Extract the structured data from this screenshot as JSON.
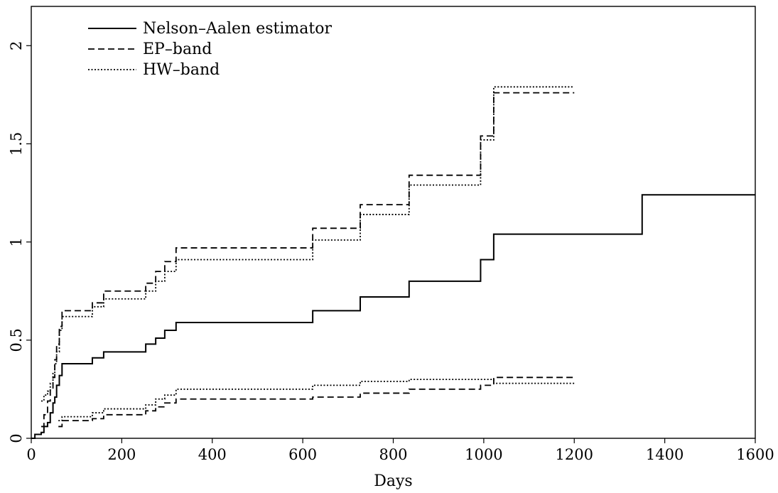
{
  "chart_data": {
    "type": "line",
    "title": "",
    "xlabel": "Days",
    "ylabel": "",
    "xlim": [
      0,
      1600
    ],
    "ylim": [
      0,
      2.2
    ],
    "xticks": [
      0,
      200,
      400,
      600,
      800,
      1000,
      1200,
      1400,
      1600
    ],
    "xtick_labels": [
      "0",
      "200",
      "400",
      "600",
      "800",
      "1000",
      "1200",
      "1400",
      "1600"
    ],
    "yticks": [
      0,
      0.5,
      1,
      1.5,
      2
    ],
    "ytick_labels": [
      "0",
      "0.5",
      "1",
      "1.5",
      "2"
    ],
    "grid": false,
    "legend_position": "top-left",
    "step": true,
    "series": [
      {
        "name": "Nelson–Aalen estimator",
        "style": "solid",
        "x": [
          0,
          8,
          22,
          28,
          36,
          42,
          48,
          52,
          56,
          62,
          68,
          135,
          160,
          253,
          275,
          295,
          320,
          622,
          727,
          835,
          993,
          1022,
          1350,
          1600
        ],
        "y": [
          0,
          0.02,
          0.03,
          0.06,
          0.08,
          0.13,
          0.18,
          0.21,
          0.27,
          0.32,
          0.38,
          0.41,
          0.44,
          0.48,
          0.51,
          0.55,
          0.59,
          0.65,
          0.72,
          0.8,
          0.91,
          1.04,
          1.24,
          1.24
        ]
      },
      {
        "name": "EP–band",
        "style": "dashed",
        "x": [
          22,
          28,
          36,
          42,
          48,
          52,
          56,
          62,
          68,
          135,
          160,
          253,
          275,
          295,
          320,
          622,
          727,
          835,
          993,
          1022,
          1200
        ],
        "y": [
          0.06,
          0.12,
          0.19,
          0.25,
          0.31,
          0.4,
          0.48,
          0.57,
          0.65,
          0.69,
          0.75,
          0.79,
          0.85,
          0.9,
          0.97,
          1.07,
          1.19,
          1.34,
          1.54,
          1.76,
          1.76
        ]
      },
      {
        "name": "EP–band",
        "style": "dashed",
        "x": [
          60,
          68,
          135,
          160,
          253,
          275,
          295,
          320,
          622,
          727,
          835,
          993,
          1022,
          1200
        ],
        "y": [
          0.06,
          0.09,
          0.1,
          0.12,
          0.14,
          0.16,
          0.18,
          0.2,
          0.21,
          0.23,
          0.25,
          0.27,
          0.31,
          0.31
        ]
      },
      {
        "name": "HW–band",
        "style": "dotted",
        "x": [
          22,
          28,
          36,
          42,
          48,
          52,
          56,
          62,
          68,
          135,
          160,
          253,
          275,
          295,
          320,
          622,
          727,
          835,
          993,
          1022,
          1200
        ],
        "y": [
          0.19,
          0.22,
          0.24,
          0.28,
          0.33,
          0.38,
          0.44,
          0.55,
          0.62,
          0.67,
          0.71,
          0.75,
          0.8,
          0.85,
          0.91,
          1.01,
          1.14,
          1.29,
          1.52,
          1.79,
          1.79
        ]
      },
      {
        "name": "HW–band",
        "style": "dotted",
        "x": [
          60,
          68,
          135,
          160,
          253,
          275,
          295,
          320,
          622,
          727,
          835,
          993,
          1022,
          1200
        ],
        "y": [
          0.09,
          0.11,
          0.13,
          0.15,
          0.17,
          0.2,
          0.22,
          0.25,
          0.27,
          0.29,
          0.3,
          0.3,
          0.28,
          0.28
        ]
      }
    ],
    "legend": [
      {
        "label": "Nelson–Aalen estimator",
        "style": "solid"
      },
      {
        "label": "EP–band",
        "style": "dashed"
      },
      {
        "label": "HW–band",
        "style": "dotted"
      }
    ]
  }
}
